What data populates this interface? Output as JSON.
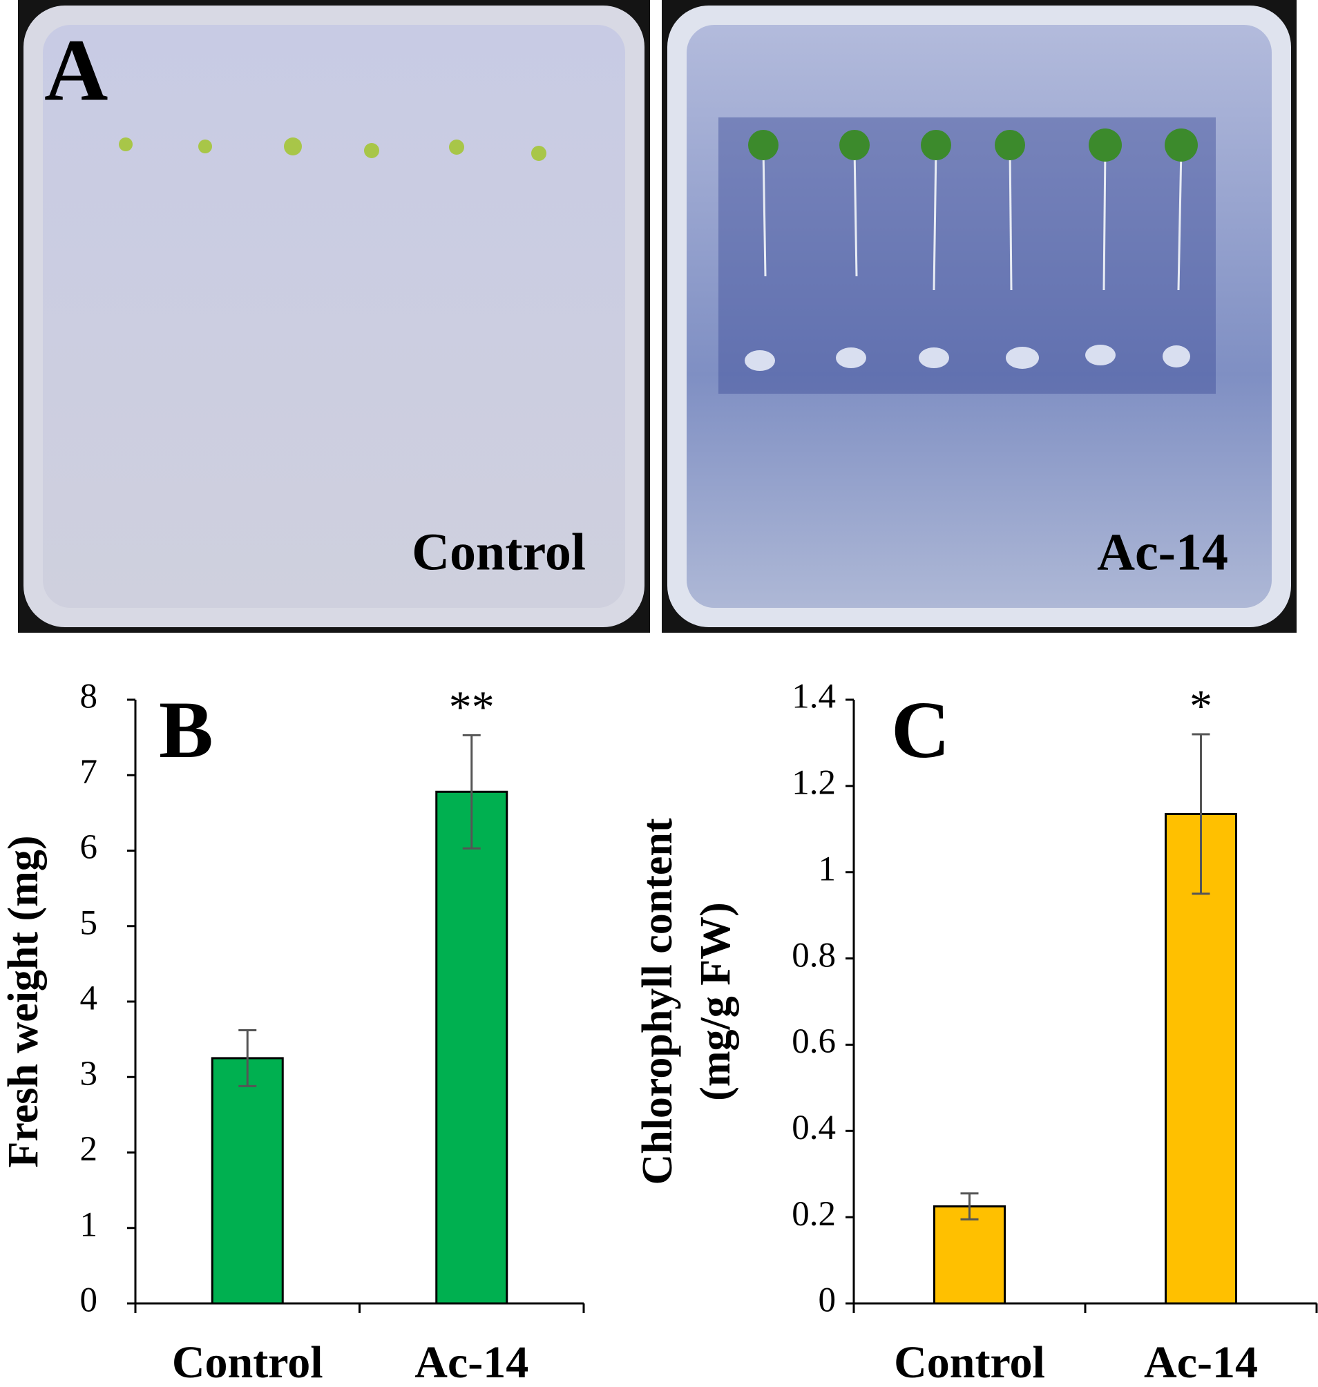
{
  "panel_a": {
    "label": "A",
    "plates": [
      "Control",
      "Ac-14"
    ]
  },
  "chart_data": [
    {
      "type": "bar",
      "panel_label": "B",
      "ylabel": "Fresh weight (mg)",
      "categories": [
        "Control",
        "Ac-14"
      ],
      "values": [
        3.25,
        6.78
      ],
      "errors": [
        0.37,
        0.75
      ],
      "color": "#00b050",
      "ylim": [
        0,
        8
      ],
      "yticks": [
        0,
        1,
        2,
        3,
        4,
        5,
        6,
        7,
        8
      ],
      "annotations": [
        {
          "text": "**",
          "x": "Ac-14"
        }
      ]
    },
    {
      "type": "bar",
      "panel_label": "C",
      "ylabel": [
        "Chlorophyll content",
        "(mg/g FW)"
      ],
      "categories": [
        "Control",
        "Ac-14"
      ],
      "values": [
        0.225,
        1.135
      ],
      "errors": [
        0.03,
        0.185
      ],
      "color": "#ffc000",
      "ylim": [
        0,
        1.4
      ],
      "yticks": [
        0,
        0.2,
        0.4,
        0.6,
        0.8,
        1,
        1.2,
        1.4
      ],
      "annotations": [
        {
          "text": "*",
          "x": "Ac-14"
        }
      ]
    }
  ]
}
